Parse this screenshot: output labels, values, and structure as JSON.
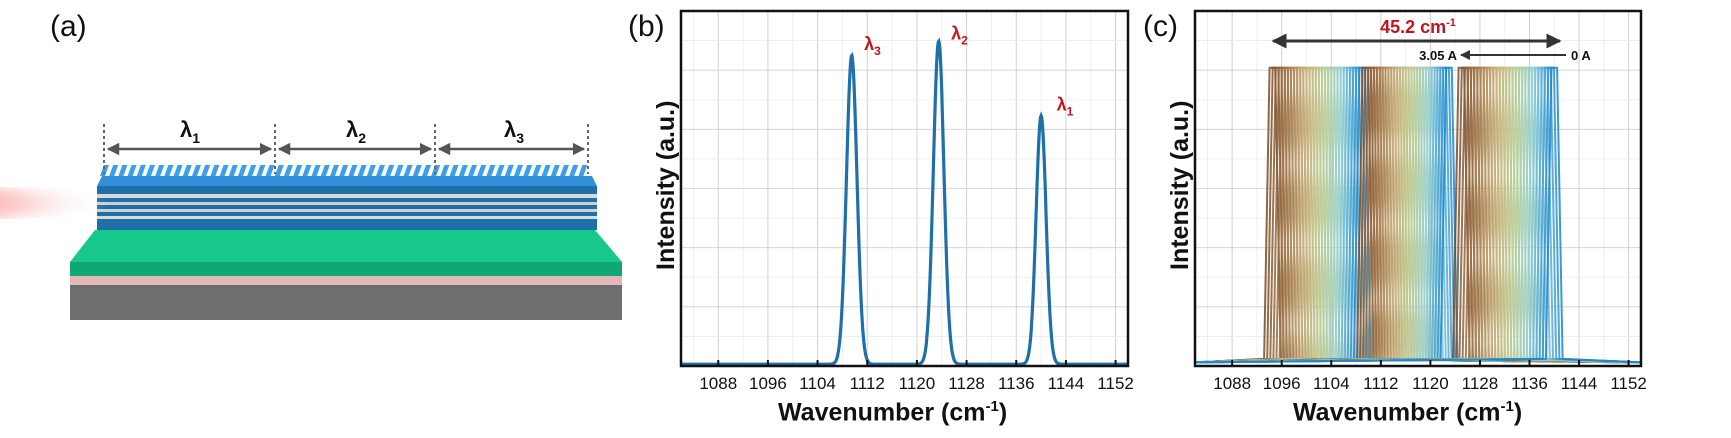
{
  "panels": [
    {
      "label": "(a)"
    },
    {
      "label": "(b)",
      "xlabel": "Wavenumber (cm",
      "xlabel_sup": "-1",
      "xlabel_end": ")",
      "ylabel": "Intensity (a.u.)"
    },
    {
      "label": "(c)",
      "xlabel": "Wavenumber (cm",
      "xlabel_sup": "-1",
      "xlabel_end": ")",
      "ylabel": "Intensity (a.u.)"
    }
  ],
  "device": {
    "sections": [
      {
        "symbol": "λ",
        "sub": "1"
      },
      {
        "symbol": "λ",
        "sub": "2"
      },
      {
        "symbol": "λ",
        "sub": "3"
      }
    ],
    "colors": {
      "grating": "#2f8fd8",
      "active": "#1f6fa8",
      "cladding": "#16c98a",
      "substrate": "#6e6e6e",
      "beam": "#f25a5a"
    }
  },
  "chart_data": [
    {
      "type": "line",
      "panel": "b",
      "xlim": [
        1082,
        1154
      ],
      "ylim": [
        0,
        1
      ],
      "xticks": [
        1088,
        1096,
        1104,
        1112,
        1120,
        1128,
        1136,
        1144,
        1152
      ],
      "grid": true,
      "series": [
        {
          "color": "#1f6fa8",
          "peaks": [
            {
              "x": 1109.5,
              "height": 0.87,
              "width": 0.85
            },
            {
              "x": 1123.5,
              "height": 0.91,
              "width": 0.85
            },
            {
              "x": 1140.0,
              "height": 0.7,
              "width": 0.8
            }
          ]
        }
      ],
      "annotations": [
        {
          "symbol": "λ",
          "sub": "3",
          "x": 1111.5,
          "y": 0.89,
          "color": "#c0161b"
        },
        {
          "symbol": "λ",
          "sub": "2",
          "x": 1125.5,
          "y": 0.92,
          "color": "#c0161b"
        },
        {
          "symbol": "λ",
          "sub": "1",
          "x": 1142.5,
          "y": 0.72,
          "color": "#c0161b"
        }
      ]
    },
    {
      "type": "line",
      "panel": "c",
      "xlim": [
        1082,
        1154
      ],
      "ylim": [
        0,
        1
      ],
      "xticks": [
        1088,
        1096,
        1104,
        1112,
        1120,
        1128,
        1136,
        1144,
        1152
      ],
      "grid": true,
      "current_range_A": [
        0,
        3.05
      ],
      "tuning_range": "45.2 cm",
      "tuning_range_sup": "-1",
      "current_labels": {
        "start": "0 A",
        "end": "3.05 A"
      },
      "bands": [
        {
          "x_start": 1094.5,
          "x_end": 1109.0,
          "colors": [
            "#7a4a26",
            "#a47a4a",
            "#c9b27c",
            "#b9cf95",
            "#8fd0d8",
            "#1b86cf"
          ]
        },
        {
          "x_start": 1109.5,
          "x_end": 1123.0,
          "colors": [
            "#7a4a26",
            "#a47a4a",
            "#c9b27c",
            "#b9cf95",
            "#8fd0d8",
            "#1b86cf"
          ]
        },
        {
          "x_start": 1125.0,
          "x_end": 1140.0,
          "colors": [
            "#7a4a26",
            "#a47a4a",
            "#c9b27c",
            "#b9cf95",
            "#8fd0d8",
            "#1b86cf"
          ]
        }
      ],
      "lines_per_band": 30,
      "annotation_color": "#c0161b"
    }
  ]
}
